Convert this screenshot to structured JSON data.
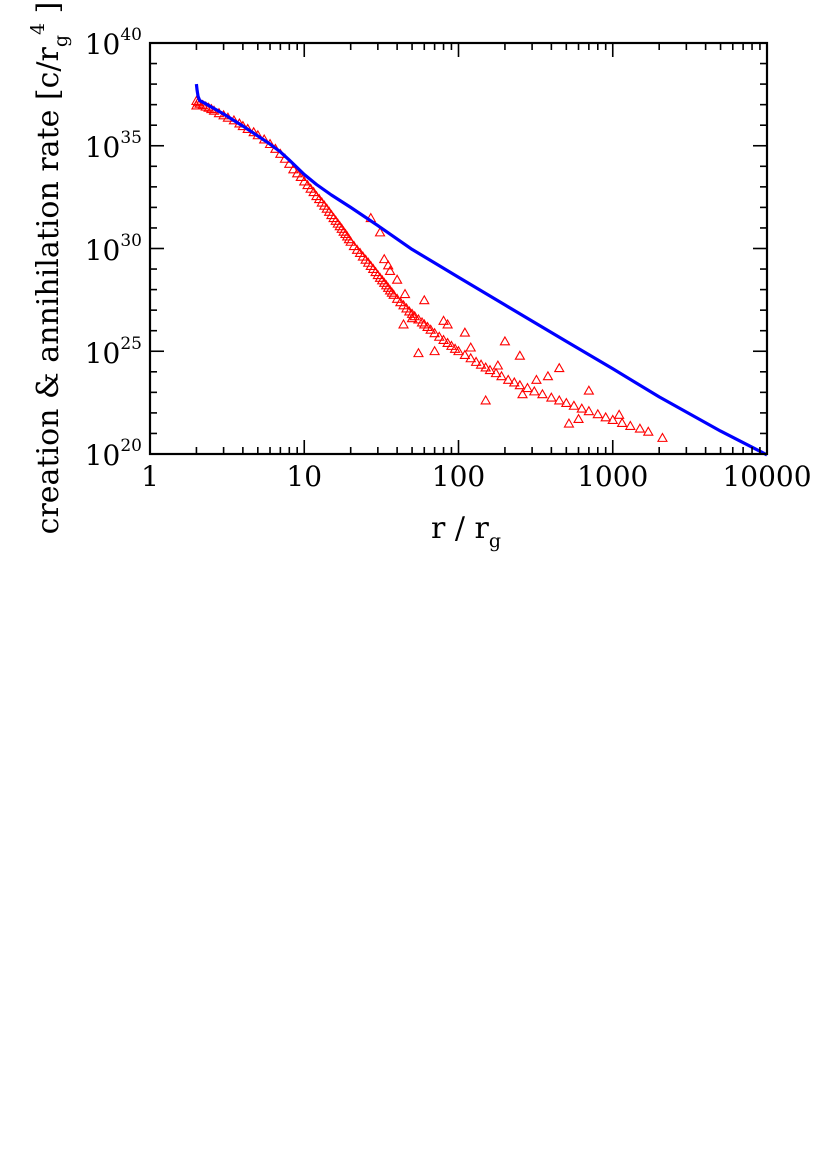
{
  "chart_data": {
    "type": "scatter",
    "xlabel": {
      "main": "r / r",
      "sub": "g"
    },
    "ylabel": {
      "main": "creation & annihilation rate [c/r",
      "sub": "g",
      "sup": "4",
      "end": " ]"
    },
    "x_scale": "log",
    "y_scale": "log",
    "xlim": [
      1,
      10000
    ],
    "ylim": [
      1e+20,
      1e+40
    ],
    "x_ticks": [
      "1",
      "10",
      "100",
      "1000",
      "10000"
    ],
    "y_ticks": [
      {
        "base": "10",
        "exp": "20"
      },
      {
        "base": "10",
        "exp": "25"
      },
      {
        "base": "10",
        "exp": "30"
      },
      {
        "base": "10",
        "exp": "35"
      },
      {
        "base": "10",
        "exp": "40"
      }
    ],
    "grid": false,
    "legend": "none",
    "colors": {
      "line_series": "#0000ff",
      "scatter_series": "#ff0000"
    },
    "series": [
      {
        "kind": "line",
        "color": "#0000ff",
        "x": [
          2.0,
          2.02,
          2.05,
          2.1,
          2.3,
          2.6,
          3.0,
          3.5,
          4.0,
          5.0,
          6.0,
          7.0,
          8.0,
          10.0,
          12.0,
          15.0,
          20.0,
          30.0,
          50.0,
          70.0,
          100.0,
          200.0,
          500.0,
          1000.0,
          2000.0,
          5000.0,
          10000.0
        ],
        "y": [
          1e+38,
          5e+37,
          2.5e+37,
          1.6e+37,
          1.1e+37,
          6.5e+36,
          3.5e+36,
          1.7e+36,
          9e+35,
          3e+35,
          1.2e+35,
          5e+34,
          2e+34,
          4e+33,
          1.3e+33,
          4e+32,
          1e+32,
          1.3e+31,
          9e+29,
          2e+29,
          4e+28,
          1.8e+27,
          3e+25,
          1.4e+24,
          6e+22,
          1.3e+21,
          8e+19
        ]
      },
      {
        "kind": "scatter",
        "marker": "open-triangle",
        "color": "#ff0000",
        "x": [
          2.0,
          2.0,
          2.05,
          2.1,
          2.2,
          2.3,
          2.4,
          2.5,
          2.6,
          2.8,
          3.0,
          3.2,
          3.5,
          3.8,
          4.0,
          4.3,
          4.7,
          5.0,
          5.5,
          6.0,
          6.5,
          7.0,
          7.5,
          8.0,
          8.5,
          9.0,
          9.5,
          10.0,
          10.5,
          11.0,
          11.5,
          12.0,
          12.5,
          13.0,
          13.5,
          14.0,
          14.5,
          15.0,
          15.5,
          16.0,
          16.5,
          17.0,
          17.5,
          18.0,
          18.5,
          19.0,
          19.5,
          20.0,
          21.0,
          22.0,
          23.0,
          24.0,
          25.0,
          26.0,
          27.0,
          28.0,
          29.0,
          30.0,
          31.0,
          32.0,
          33.0,
          34.0,
          35.0,
          36.0,
          37.0,
          38.0,
          40.0,
          42.0,
          44.0,
          46.0,
          48.0,
          50.0,
          52.0,
          55.0,
          58.0,
          60.0,
          63.0,
          66.0,
          70.0,
          75.0,
          80.0,
          85.0,
          90.0,
          95.0,
          100.0,
          110.0,
          120.0,
          130.0,
          140.0,
          150.0,
          160.0,
          175.0,
          190.0,
          210.0,
          230.0,
          250.0,
          280.0,
          310.0,
          350.0,
          400.0,
          450.0,
          500.0,
          560.0,
          630.0,
          700.0,
          800.0,
          900.0,
          1000.0,
          1150.0,
          1300.0,
          1500.0,
          1700.0,
          2100.0,
          33.0,
          36.0,
          40.0,
          45.0,
          50.0,
          60.0,
          70.0,
          85.0,
          110.0,
          150.0,
          200.0,
          250.0,
          320.0,
          450.0,
          600.0,
          27.0,
          31.0,
          35.0,
          44.0,
          55.0,
          80.0,
          120.0,
          180.0,
          260.0,
          380.0,
          520.0,
          700.0,
          1100.0
        ],
        "y": [
          9e+36,
          1.5e+37,
          1.3e+37,
          1.1e+37,
          9.5e+36,
          8e+36,
          7e+36,
          6e+36,
          5e+36,
          3.8e+36,
          3e+36,
          2.3e+36,
          1.7e+36,
          1.2e+36,
          9e+35,
          6.5e+35,
          4.5e+35,
          3.2e+35,
          2e+35,
          1.2e+35,
          7e+34,
          4e+34,
          2.3e+34,
          1.3e+34,
          7e+33,
          4.5e+33,
          3e+33,
          1.8e+33,
          1.2e+33,
          8e+32,
          5.5e+32,
          3.5e+32,
          2.5e+32,
          1.7e+32,
          1.2e+32,
          8.5e+31,
          6e+31,
          4.2e+31,
          3e+31,
          2.2e+31,
          1.6e+31,
          1.2e+31,
          9e+30,
          6.5e+30,
          5e+30,
          3.8e+30,
          2.8e+30,
          2.1e+30,
          1.3e+30,
          8.5e+29,
          6e+29,
          4e+29,
          2.8e+29,
          2e+29,
          1.4e+29,
          1e+29,
          7e+28,
          5e+28,
          3.7e+28,
          2.8e+28,
          2.1e+28,
          1.6e+28,
          1.2e+28,
          9e+27,
          7e+27,
          5.5e+27,
          3.5e+27,
          2.4e+27,
          1.7e+27,
          1.2e+27,
          8.5e+26,
          6.5e+26,
          5e+26,
          3.5e+26,
          2.5e+26,
          2e+26,
          1.5e+26,
          1.1e+26,
          7.5e+25,
          5e+25,
          3.5e+25,
          2.5e+25,
          1.8e+25,
          1.3e+25,
          1e+25,
          6.5e+24,
          4.5e+24,
          3e+24,
          2.2e+24,
          1.6e+24,
          1.2e+24,
          8.5e+23,
          6e+23,
          4e+23,
          3e+23,
          2.2e+23,
          1.6e+23,
          1.1e+23,
          8e+22,
          5.5e+22,
          4e+22,
          3e+22,
          2.2e+22,
          1.6e+22,
          1.2e+22,
          8.5e+21,
          6e+21,
          4.5e+21,
          3.2e+21,
          2.3e+21,
          1.7e+21,
          1.2e+21,
          6e+20,
          3e+29,
          8e+28,
          3e+28,
          6e+27,
          4e+26,
          3e+27,
          1e+25,
          2e+26,
          8e+25,
          4e+22,
          3e+25,
          6e+24,
          4e+23,
          1.5e+24,
          5e+21,
          3e+31,
          6e+30,
          1.5e+29,
          2e+26,
          8e+24,
          3e+26,
          1.5e+25,
          2e+24,
          8e+22,
          6e+23,
          3e+21,
          1.2e+23,
          8e+21
        ]
      }
    ]
  }
}
